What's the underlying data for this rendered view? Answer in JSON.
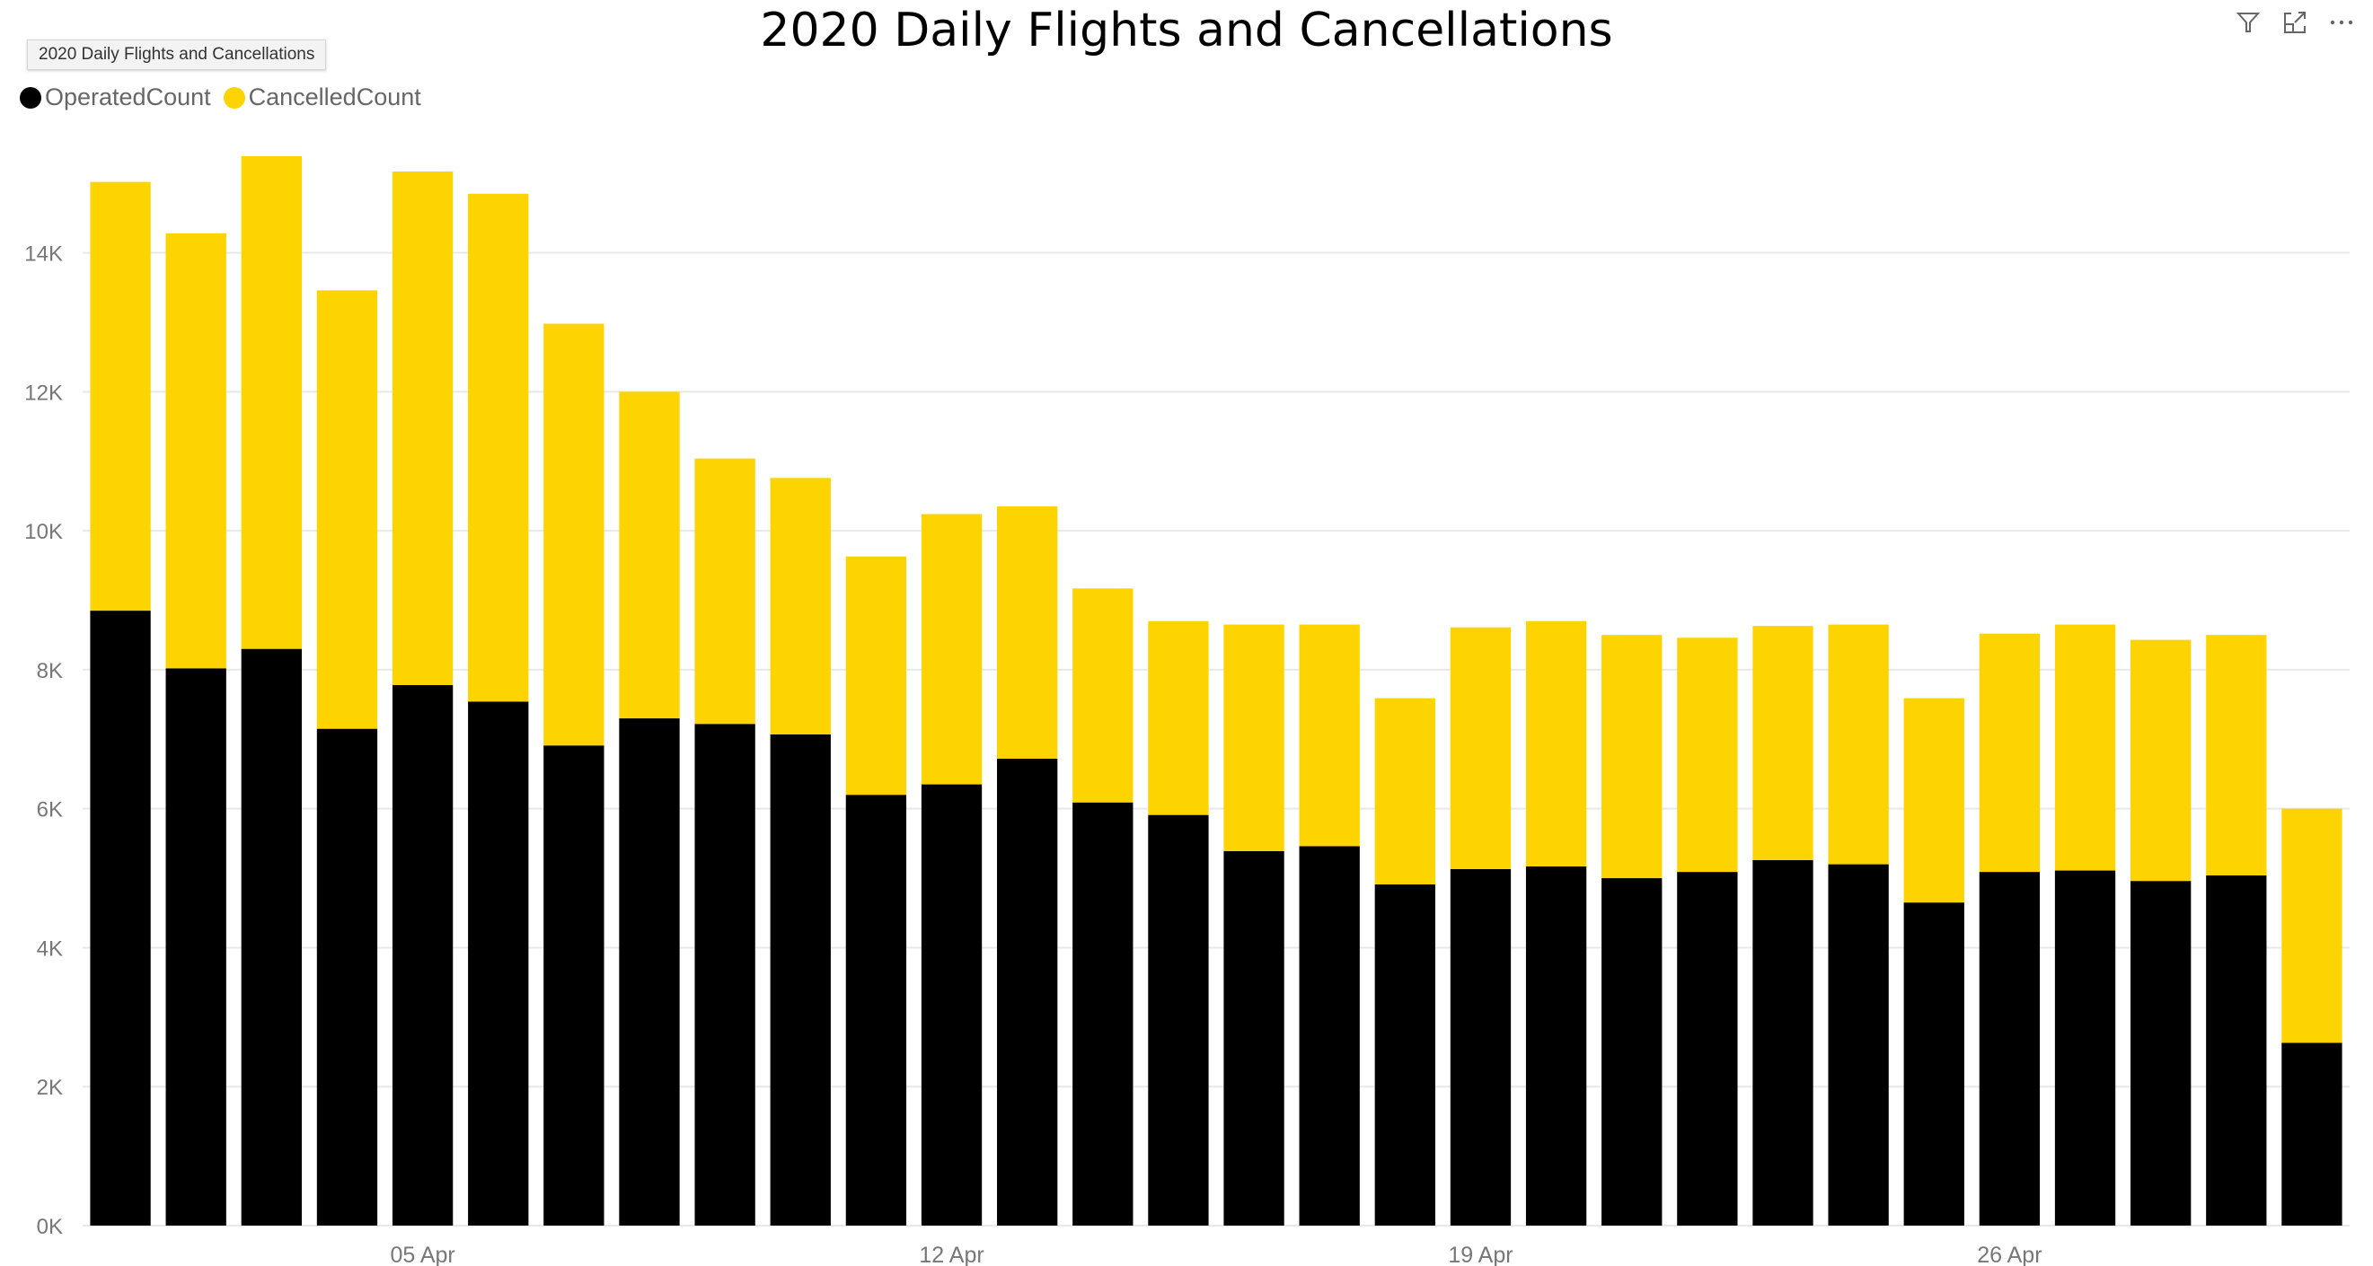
{
  "header": {
    "title": "2020 Daily Flights and Cancellations",
    "tooltip": "2020 Daily Flights and Cancellations"
  },
  "toolbar": {
    "icons": [
      "filter-icon",
      "focus-mode-icon",
      "more-options-icon"
    ]
  },
  "colors": {
    "operated": "#000000",
    "cancelled": "#FDD300",
    "gridline": "#e8e8e8",
    "tick_text": "#777777"
  },
  "chart_data": {
    "type": "bar",
    "stacked": true,
    "title": "2020 Daily Flights and Cancellations",
    "xlabel": "",
    "ylabel": "",
    "ylim": [
      0,
      15500
    ],
    "grid": true,
    "legend_position": "top-left",
    "yticks": [
      0,
      2000,
      4000,
      6000,
      8000,
      10000,
      12000,
      14000
    ],
    "ytick_labels": [
      "0K",
      "2K",
      "4K",
      "6K",
      "8K",
      "10K",
      "12K",
      "14K"
    ],
    "categories": [
      "01 Apr",
      "02 Apr",
      "03 Apr",
      "04 Apr",
      "05 Apr",
      "06 Apr",
      "07 Apr",
      "08 Apr",
      "09 Apr",
      "10 Apr",
      "11 Apr",
      "12 Apr",
      "13 Apr",
      "14 Apr",
      "15 Apr",
      "16 Apr",
      "17 Apr",
      "18 Apr",
      "19 Apr",
      "20 Apr",
      "21 Apr",
      "22 Apr",
      "23 Apr",
      "24 Apr",
      "25 Apr",
      "26 Apr",
      "27 Apr",
      "28 Apr",
      "29 Apr",
      "30 Apr"
    ],
    "xtick_labels": [
      {
        "index": 4,
        "label": "05 Apr"
      },
      {
        "index": 11,
        "label": "12 Apr"
      },
      {
        "index": 18,
        "label": "19 Apr"
      },
      {
        "index": 25,
        "label": "26 Apr"
      }
    ],
    "series": [
      {
        "name": "OperatedCount",
        "values": [
          8850,
          8020,
          8300,
          7150,
          7780,
          7540,
          6910,
          7300,
          7220,
          7070,
          6200,
          6350,
          6720,
          6090,
          5910,
          5390,
          5460,
          4910,
          5130,
          5170,
          5000,
          5090,
          5260,
          5200,
          4650,
          5090,
          5110,
          4960,
          5040,
          2630
        ]
      },
      {
        "name": "CancelledCount",
        "values": [
          6170,
          6260,
          7090,
          6310,
          7390,
          7310,
          6070,
          4700,
          3820,
          3690,
          3430,
          3890,
          3630,
          3080,
          2790,
          3260,
          3190,
          2680,
          3480,
          3530,
          3500,
          3370,
          3370,
          3450,
          2940,
          3430,
          3540,
          3470,
          3460,
          3370
        ]
      }
    ]
  }
}
